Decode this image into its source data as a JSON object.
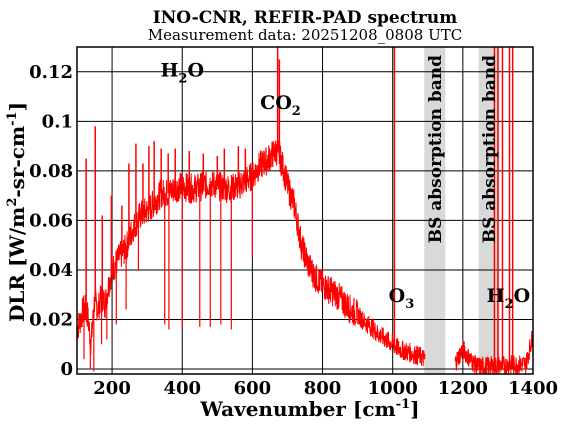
{
  "chart_data": {
    "type": "line",
    "title": "INO-CNR, REFIR-PAD spectrum",
    "subtitle": "Measurement data: 20251208_0808 UTC",
    "xlabel": {
      "main": "Wavenumber [cm",
      "sup": "-1",
      "tail": "]"
    },
    "ylabel": {
      "a": "DLR [W/m",
      "sup1": "2",
      "b": "-sr-cm",
      "sup2": "-1",
      "c": "]"
    },
    "xlim": [
      100,
      1400
    ],
    "ylim": [
      -0.002,
      0.13
    ],
    "x_ticks": [
      200,
      400,
      600,
      800,
      1000,
      1200,
      1400
    ],
    "x_tick_labels": [
      "200",
      "400",
      "600",
      "800",
      "1000",
      "1200",
      "1400"
    ],
    "y_ticks": [
      0,
      0.02,
      0.04,
      0.06,
      0.08,
      0.1,
      0.12
    ],
    "y_tick_labels": [
      "0",
      "0.02",
      "0.04",
      "0.06",
      "0.08",
      "0.1",
      "0.12"
    ],
    "grid": true,
    "line_color": "#ff0000",
    "band_color": "#d9d9d9",
    "bands": [
      {
        "x0": 1090,
        "x1": 1150,
        "label": "BS absorption band"
      },
      {
        "x0": 1245,
        "x1": 1305,
        "label": "BS absorption band"
      }
    ],
    "annotations": [
      {
        "base": "H",
        "sub": "2",
        "tail": "O",
        "x": 400,
        "y": 0.118
      },
      {
        "base": "CO",
        "sub": "2",
        "tail": "",
        "x": 680,
        "y": 0.105
      },
      {
        "base": "O",
        "sub": "3",
        "tail": "",
        "x": 1025,
        "y": 0.027
      },
      {
        "base": "H",
        "sub": "2",
        "tail": "O",
        "x": 1330,
        "y": 0.027
      }
    ],
    "series": [
      {
        "x": [
          100,
          110,
          120,
          130,
          140,
          150,
          160,
          170,
          180,
          190,
          200,
          220,
          240,
          260,
          280,
          300,
          320,
          340,
          360,
          380,
          400,
          420,
          440,
          460,
          480,
          500,
          520,
          540,
          560,
          580,
          600,
          620,
          640,
          660,
          670,
          680,
          690,
          700,
          720,
          740,
          760,
          780,
          800,
          820,
          840,
          860,
          880,
          900,
          920,
          940,
          960,
          980,
          1000,
          1020,
          1040,
          1060,
          1080,
          1090,
          1180,
          1200,
          1220,
          1240,
          1380,
          1400
        ],
        "y": [
          0.016,
          0.02,
          0.025,
          0.022,
          0.01,
          0.028,
          0.024,
          0.03,
          0.026,
          0.034,
          0.04,
          0.045,
          0.049,
          0.057,
          0.062,
          0.064,
          0.067,
          0.071,
          0.071,
          0.073,
          0.074,
          0.073,
          0.073,
          0.074,
          0.075,
          0.074,
          0.073,
          0.073,
          0.074,
          0.076,
          0.078,
          0.082,
          0.084,
          0.087,
          0.088,
          0.085,
          0.08,
          0.074,
          0.066,
          0.05,
          0.042,
          0.037,
          0.034,
          0.032,
          0.03,
          0.027,
          0.024,
          0.022,
          0.019,
          0.017,
          0.014,
          0.012,
          0.01,
          0.008,
          0.007,
          0.006,
          0.005,
          0.004,
          0.003,
          0.008,
          0.004,
          0.001,
          0.002,
          0.014
        ],
        "spikes": [
          {
            "x": 126,
            "y": 0.085
          },
          {
            "x": 152,
            "y": 0.098
          },
          {
            "x": 172,
            "y": 0.062
          },
          {
            "x": 198,
            "y": 0.07
          },
          {
            "x": 228,
            "y": 0.066
          },
          {
            "x": 248,
            "y": 0.083
          },
          {
            "x": 268,
            "y": 0.091
          },
          {
            "x": 288,
            "y": 0.083
          },
          {
            "x": 305,
            "y": 0.09
          },
          {
            "x": 320,
            "y": 0.092
          },
          {
            "x": 340,
            "y": 0.089
          },
          {
            "x": 360,
            "y": 0.087
          },
          {
            "x": 380,
            "y": 0.089
          },
          {
            "x": 420,
            "y": 0.088
          },
          {
            "x": 460,
            "y": 0.087
          },
          {
            "x": 500,
            "y": 0.086
          },
          {
            "x": 520,
            "y": 0.089
          },
          {
            "x": 560,
            "y": 0.09
          },
          {
            "x": 580,
            "y": 0.089
          },
          {
            "x": 672,
            "y": 0.13
          },
          {
            "x": 677,
            "y": 0.125
          },
          {
            "x": 1005,
            "y": 0.13
          },
          {
            "x": 1290,
            "y": 0.13
          },
          {
            "x": 1300,
            "y": 0.13
          },
          {
            "x": 1313,
            "y": 0.13
          },
          {
            "x": 1333,
            "y": 0.13
          },
          {
            "x": 1342,
            "y": 0.13
          }
        ],
        "dips": [
          {
            "x": 120,
            "y": 0.004
          },
          {
            "x": 138,
            "y": 0.0
          },
          {
            "x": 148,
            "y": -0.001
          },
          {
            "x": 170,
            "y": 0.01
          },
          {
            "x": 185,
            "y": 0.012
          },
          {
            "x": 212,
            "y": 0.018
          },
          {
            "x": 240,
            "y": 0.024
          },
          {
            "x": 275,
            "y": 0.04
          },
          {
            "x": 350,
            "y": 0.018
          },
          {
            "x": 362,
            "y": 0.016
          },
          {
            "x": 400,
            "y": 0.017
          },
          {
            "x": 450,
            "y": 0.017
          },
          {
            "x": 480,
            "y": 0.017
          },
          {
            "x": 510,
            "y": 0.018
          },
          {
            "x": 540,
            "y": 0.016
          },
          {
            "x": 600,
            "y": 0.045
          },
          {
            "x": 1320,
            "y": -0.002
          }
        ]
      }
    ]
  }
}
